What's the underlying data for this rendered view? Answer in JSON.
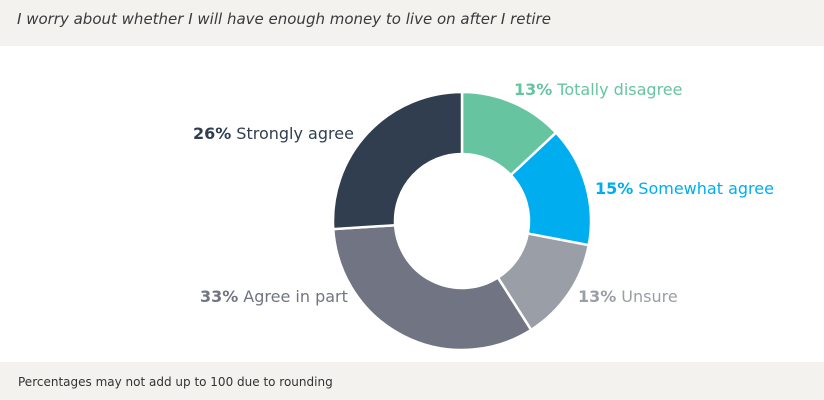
{
  "title": "I worry about whether I will have enough money to live on after I retire",
  "footnote": "Percentages may not add up to 100 due to rounding",
  "chart_data": {
    "type": "pie",
    "donut": true,
    "unit": "%",
    "slices": [
      {
        "label": "Totally disagree",
        "value": 13,
        "value_text": "13%",
        "color": "#66c5a0"
      },
      {
        "label": "Somewhat agree",
        "value": 15,
        "value_text": "15%",
        "color": "#00aeef"
      },
      {
        "label": "Unsure",
        "value": 13,
        "value_text": "13%",
        "color": "#9a9ea6"
      },
      {
        "label": "Agree in part",
        "value": 33,
        "value_text": "33%",
        "color": "#717583"
      },
      {
        "label": "Strongly agree",
        "value": 26,
        "value_text": "26%",
        "color": "#303e50"
      }
    ]
  }
}
